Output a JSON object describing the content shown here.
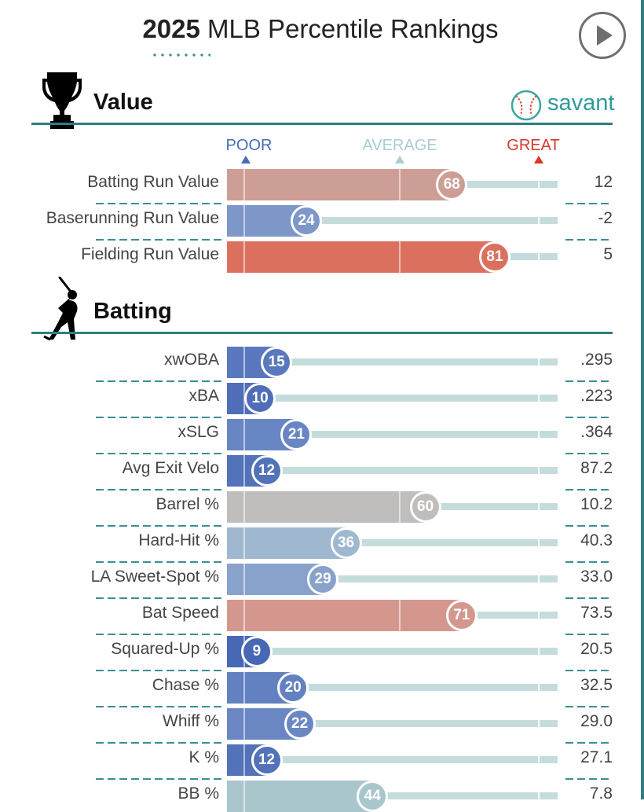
{
  "header": {
    "year": "2025",
    "title": "MLB Percentile Rankings"
  },
  "play_button": {
    "icon": "play-icon"
  },
  "sections": [
    {
      "key": "value",
      "title": "Value",
      "icon": "trophy-icon"
    },
    {
      "key": "batting",
      "title": "Batting",
      "icon": "batter-icon"
    }
  ],
  "brand": {
    "name": "savant",
    "icon": "baseball-icon"
  },
  "scale": {
    "poor": "POOR",
    "average": "AVERAGE",
    "great": "GREAT"
  },
  "colors": {
    "poor": "#4a6cb5",
    "average": "#a9cdd1",
    "great": "#d5392a",
    "teal": "#2d7f7f",
    "track": "#c5dcdc"
  },
  "value_metrics": [
    {
      "label": "Batting Run Value",
      "percentile": 68,
      "value": "12",
      "color": "#cd9e95"
    },
    {
      "label": "Baserunning Run Value",
      "percentile": 24,
      "value": "-2",
      "color": "#7d97c8"
    },
    {
      "label": "Fielding Run Value",
      "percentile": 81,
      "value": "5",
      "color": "#dc705f"
    }
  ],
  "batting_metrics": [
    {
      "label": "xwOBA",
      "percentile": 15,
      "value": ".295",
      "color": "#5a78bd"
    },
    {
      "label": "xBA",
      "percentile": 10,
      "value": ".223",
      "color": "#4f6db8"
    },
    {
      "label": "xSLG",
      "percentile": 21,
      "value": ".364",
      "color": "#6886c3"
    },
    {
      "label": "Avg Exit Velo",
      "percentile": 12,
      "value": "87.2",
      "color": "#5272b9"
    },
    {
      "label": "Barrel %",
      "percentile": 60,
      "value": "10.2",
      "color": "#c0bebc"
    },
    {
      "label": "Hard-Hit %",
      "percentile": 36,
      "value": "40.3",
      "color": "#9fb8cf"
    },
    {
      "label": "LA Sweet-Spot %",
      "percentile": 29,
      "value": "33.0",
      "color": "#88a2cb"
    },
    {
      "label": "Bat Speed",
      "percentile": 71,
      "value": "73.5",
      "color": "#d4978e"
    },
    {
      "label": "Squared-Up %",
      "percentile": 9,
      "value": "20.5",
      "color": "#4868b5"
    },
    {
      "label": "Chase %",
      "percentile": 20,
      "value": "32.5",
      "color": "#6381c1"
    },
    {
      "label": "Whiff %",
      "percentile": 22,
      "value": "29.0",
      "color": "#6a87c3"
    },
    {
      "label": "K %",
      "percentile": 12,
      "value": "27.1",
      "color": "#5272b9"
    },
    {
      "label": "BB %",
      "percentile": 44,
      "value": "7.8",
      "color": "#a9c6cd"
    }
  ]
}
